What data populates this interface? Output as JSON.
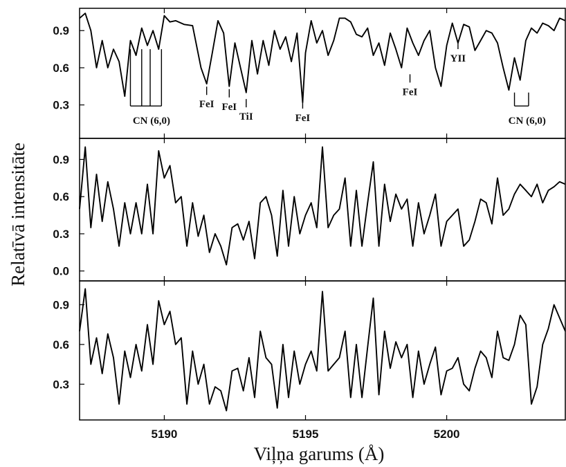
{
  "chart_data": {
    "type": "line",
    "xlabel": "Viļņa garums (Å)",
    "ylabel": "Relatīvā intensitāte",
    "xlim": [
      5187.0,
      5204.2
    ],
    "xticks": [
      5190,
      5195,
      5200
    ],
    "xtick_labels": [
      "5190",
      "5195",
      "5200"
    ],
    "grid": false,
    "line_color": "#000000",
    "panels": [
      {
        "name": "top",
        "ylim": [
          0.03,
          1.08
        ],
        "yticks": [
          0.3,
          0.6,
          0.9
        ],
        "ytick_labels": [
          "0.3",
          "0.6",
          "0.9"
        ],
        "x": [
          5187.0,
          5187.2,
          5187.4,
          5187.6,
          5187.8,
          5188.0,
          5188.2,
          5188.4,
          5188.6,
          5188.8,
          5189.0,
          5189.2,
          5189.4,
          5189.6,
          5189.8,
          5190.0,
          5190.2,
          5190.4,
          5190.7,
          5191.0,
          5191.3,
          5191.5,
          5191.7,
          5191.9,
          5192.1,
          5192.3,
          5192.5,
          5192.7,
          5192.9,
          5193.1,
          5193.3,
          5193.5,
          5193.7,
          5193.9,
          5194.1,
          5194.3,
          5194.5,
          5194.7,
          5194.9,
          5195.0,
          5195.2,
          5195.4,
          5195.6,
          5195.8,
          5196.0,
          5196.2,
          5196.4,
          5196.6,
          5196.8,
          5197.0,
          5197.2,
          5197.4,
          5197.6,
          5197.8,
          5198.0,
          5198.2,
          5198.4,
          5198.6,
          5198.8,
          5199.0,
          5199.2,
          5199.4,
          5199.6,
          5199.8,
          5200.0,
          5200.2,
          5200.4,
          5200.6,
          5200.8,
          5201.0,
          5201.2,
          5201.4,
          5201.6,
          5201.8,
          5202.0,
          5202.2,
          5202.4,
          5202.6,
          5202.8,
          5203.0,
          5203.2,
          5203.4,
          5203.6,
          5203.8,
          5204.0,
          5204.2
        ],
        "y": [
          1.0,
          1.04,
          0.9,
          0.6,
          0.82,
          0.6,
          0.75,
          0.65,
          0.37,
          0.82,
          0.7,
          0.92,
          0.78,
          0.9,
          0.75,
          1.02,
          0.97,
          0.98,
          0.95,
          0.94,
          0.6,
          0.47,
          0.72,
          0.98,
          0.88,
          0.45,
          0.8,
          0.6,
          0.4,
          0.82,
          0.55,
          0.82,
          0.62,
          0.9,
          0.75,
          0.85,
          0.65,
          0.88,
          0.32,
          0.72,
          0.98,
          0.8,
          0.9,
          0.7,
          0.82,
          1.0,
          1.0,
          0.97,
          0.87,
          0.85,
          0.92,
          0.7,
          0.8,
          0.62,
          0.88,
          0.75,
          0.6,
          0.92,
          0.8,
          0.7,
          0.82,
          0.9,
          0.6,
          0.45,
          0.78,
          0.96,
          0.8,
          0.95,
          0.93,
          0.74,
          0.82,
          0.9,
          0.88,
          0.8,
          0.6,
          0.42,
          0.68,
          0.5,
          0.82,
          0.92,
          0.88,
          0.96,
          0.94,
          0.9,
          1.0,
          0.98
        ]
      },
      {
        "name": "middle",
        "ylim": [
          -0.08,
          1.07
        ],
        "yticks": [
          0.0,
          0.3,
          0.6,
          0.9
        ],
        "ytick_labels": [
          "0.0",
          "0.3",
          "0.6",
          "0.9"
        ],
        "x": [
          5187.0,
          5187.2,
          5187.4,
          5187.6,
          5187.8,
          5188.0,
          5188.2,
          5188.4,
          5188.6,
          5188.8,
          5189.0,
          5189.2,
          5189.4,
          5189.6,
          5189.8,
          5190.0,
          5190.2,
          5190.4,
          5190.6,
          5190.8,
          5191.0,
          5191.2,
          5191.4,
          5191.6,
          5191.8,
          5192.0,
          5192.2,
          5192.4,
          5192.6,
          5192.8,
          5193.0,
          5193.2,
          5193.4,
          5193.6,
          5193.8,
          5194.0,
          5194.2,
          5194.4,
          5194.6,
          5194.8,
          5195.0,
          5195.2,
          5195.4,
          5195.6,
          5195.8,
          5196.0,
          5196.2,
          5196.4,
          5196.6,
          5196.8,
          5197.0,
          5197.2,
          5197.4,
          5197.6,
          5197.8,
          5198.0,
          5198.2,
          5198.4,
          5198.6,
          5198.8,
          5199.0,
          5199.2,
          5199.4,
          5199.6,
          5199.8,
          5200.0,
          5200.2,
          5200.4,
          5200.6,
          5200.8,
          5201.0,
          5201.2,
          5201.4,
          5201.6,
          5201.8,
          5202.0,
          5202.2,
          5202.4,
          5202.6,
          5202.8,
          5203.0,
          5203.2,
          5203.4,
          5203.6,
          5203.8,
          5204.0,
          5204.2
        ],
        "y": [
          0.5,
          1.0,
          0.35,
          0.78,
          0.4,
          0.72,
          0.5,
          0.2,
          0.55,
          0.3,
          0.55,
          0.3,
          0.7,
          0.3,
          0.97,
          0.75,
          0.85,
          0.55,
          0.6,
          0.2,
          0.55,
          0.28,
          0.45,
          0.15,
          0.3,
          0.2,
          0.05,
          0.35,
          0.38,
          0.25,
          0.4,
          0.1,
          0.55,
          0.6,
          0.45,
          0.12,
          0.65,
          0.2,
          0.6,
          0.3,
          0.45,
          0.55,
          0.35,
          1.0,
          0.35,
          0.45,
          0.5,
          0.75,
          0.2,
          0.65,
          0.2,
          0.55,
          0.88,
          0.2,
          0.7,
          0.4,
          0.62,
          0.5,
          0.58,
          0.2,
          0.55,
          0.3,
          0.45,
          0.62,
          0.2,
          0.4,
          0.45,
          0.5,
          0.2,
          0.25,
          0.4,
          0.58,
          0.55,
          0.38,
          0.75,
          0.45,
          0.5,
          0.62,
          0.7,
          0.65,
          0.6,
          0.7,
          0.55,
          0.65,
          0.68,
          0.72,
          0.7
        ]
      },
      {
        "name": "bottom",
        "ylim": [
          0.03,
          1.08
        ],
        "yticks": [
          0.3,
          0.6,
          0.9
        ],
        "ytick_labels": [
          "0.3",
          "0.6",
          "0.9"
        ],
        "x": [
          5187.0,
          5187.2,
          5187.4,
          5187.6,
          5187.8,
          5188.0,
          5188.2,
          5188.4,
          5188.6,
          5188.8,
          5189.0,
          5189.2,
          5189.4,
          5189.6,
          5189.8,
          5190.0,
          5190.2,
          5190.4,
          5190.6,
          5190.8,
          5191.0,
          5191.2,
          5191.4,
          5191.6,
          5191.8,
          5192.0,
          5192.2,
          5192.4,
          5192.6,
          5192.8,
          5193.0,
          5193.2,
          5193.4,
          5193.6,
          5193.8,
          5194.0,
          5194.2,
          5194.4,
          5194.6,
          5194.8,
          5195.0,
          5195.2,
          5195.4,
          5195.6,
          5195.8,
          5196.0,
          5196.2,
          5196.4,
          5196.6,
          5196.8,
          5197.0,
          5197.2,
          5197.4,
          5197.6,
          5197.8,
          5198.0,
          5198.2,
          5198.4,
          5198.6,
          5198.8,
          5199.0,
          5199.2,
          5199.4,
          5199.6,
          5199.8,
          5200.0,
          5200.2,
          5200.4,
          5200.6,
          5200.8,
          5201.0,
          5201.2,
          5201.4,
          5201.6,
          5201.8,
          5202.0,
          5202.2,
          5202.4,
          5202.6,
          5202.8,
          5203.0,
          5203.2,
          5203.4,
          5203.6,
          5203.8,
          5204.0,
          5204.2
        ],
        "y": [
          0.7,
          1.02,
          0.45,
          0.65,
          0.38,
          0.68,
          0.5,
          0.15,
          0.55,
          0.35,
          0.6,
          0.4,
          0.75,
          0.45,
          0.93,
          0.75,
          0.85,
          0.6,
          0.65,
          0.15,
          0.55,
          0.3,
          0.45,
          0.15,
          0.28,
          0.25,
          0.1,
          0.4,
          0.42,
          0.25,
          0.5,
          0.2,
          0.7,
          0.5,
          0.45,
          0.12,
          0.6,
          0.2,
          0.55,
          0.3,
          0.45,
          0.55,
          0.4,
          1.0,
          0.4,
          0.45,
          0.5,
          0.7,
          0.2,
          0.6,
          0.2,
          0.58,
          0.95,
          0.22,
          0.7,
          0.42,
          0.62,
          0.5,
          0.6,
          0.2,
          0.55,
          0.3,
          0.45,
          0.58,
          0.22,
          0.4,
          0.42,
          0.5,
          0.3,
          0.25,
          0.42,
          0.55,
          0.5,
          0.35,
          0.7,
          0.5,
          0.48,
          0.6,
          0.82,
          0.75,
          0.15,
          0.28,
          0.6,
          0.72,
          0.9,
          0.8,
          0.7
        ]
      }
    ],
    "annotations": [
      {
        "label": "CN (6,0)",
        "type": "bracket",
        "x": [
          5188.8,
          5189.2,
          5189.5,
          5189.9
        ],
        "line_top_y": 0.75,
        "label_y": 0.18
      },
      {
        "label": "FeI",
        "type": "tick",
        "x": 5191.5,
        "label_y": 0.28
      },
      {
        "label": "FeI",
        "type": "tick",
        "x": 5192.3,
        "label_y": 0.26
      },
      {
        "label": "TiI",
        "type": "tick",
        "x": 5192.9,
        "label_y": 0.18
      },
      {
        "label": "FeI",
        "type": "tick",
        "x": 5194.9,
        "label_y": 0.17
      },
      {
        "label": "FeI",
        "type": "tick",
        "x": 5198.7,
        "label_y": 0.38
      },
      {
        "label": "YII",
        "type": "tick",
        "x": 5200.4,
        "label_y": 0.65
      },
      {
        "label": "CN (6,0)",
        "type": "bracket",
        "x": [
          5202.4,
          5202.9
        ],
        "line_top_y": 0.4,
        "label_y": 0.18
      }
    ]
  }
}
